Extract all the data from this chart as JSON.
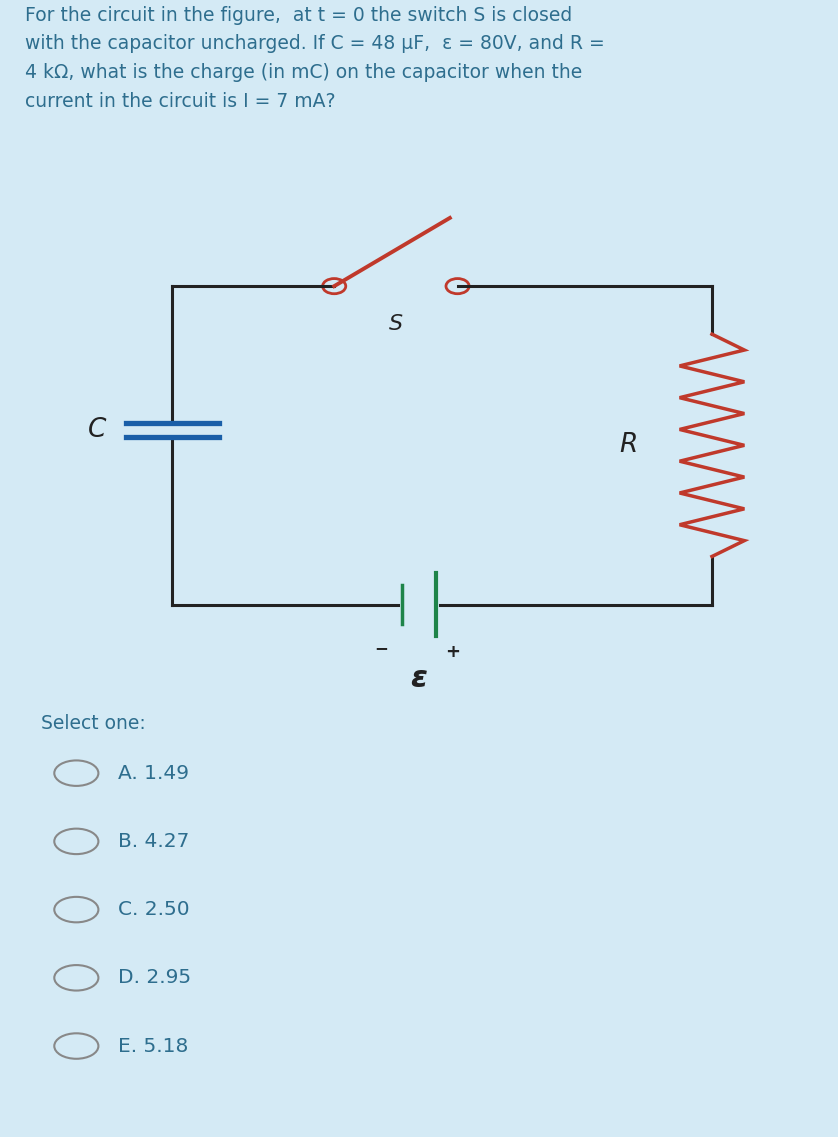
{
  "bg_color": "#d4eaf5",
  "circuit_bg": "#ffffff",
  "text_color": "#2e6e8e",
  "question_line1": "For the circuit in the figure,  at t = 0 the switch S is closed",
  "question_line2": "with the capacitor uncharged. If C = 48 μF,  ε = 80V, and R =",
  "question_line3": "4 kΩ, what is the charge (in mC) on the capacitor when the",
  "question_line4": "current in the circuit is I = 7 mA?",
  "select_one": "Select one:",
  "options": [
    "A. 1.49",
    "B. 4.27",
    "C. 2.50",
    "D. 2.95",
    "E. 5.18"
  ],
  "circuit_color": "#222222",
  "capacitor_color": "#1a5fa8",
  "resistor_color": "#c0392b",
  "switch_color": "#c0392b",
  "battery_color": "#1e8449",
  "label_color": "#222222",
  "radio_color": "#888888"
}
